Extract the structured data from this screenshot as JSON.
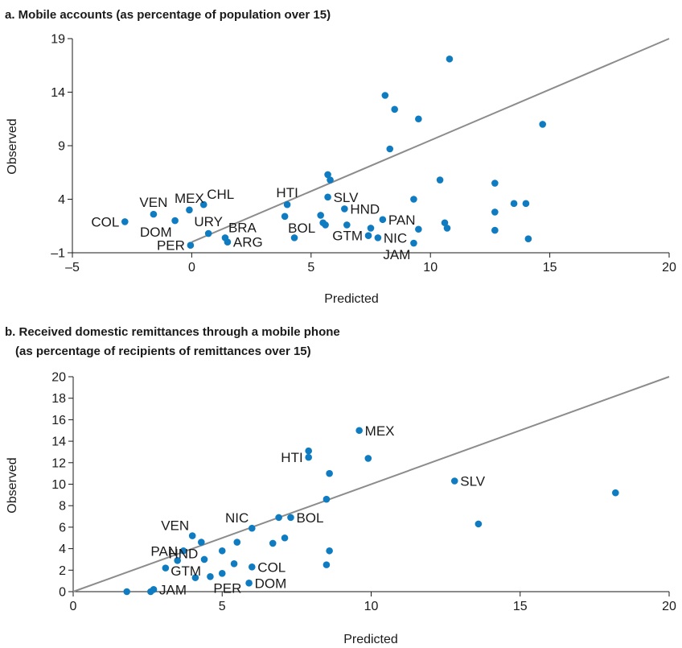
{
  "chart_data": [
    {
      "type": "scatter",
      "title": "a. Mobile accounts (as percentage of population over 15)",
      "subtitle": "",
      "xlabel": "Predicted",
      "ylabel": "Observed",
      "xlim": [
        -5,
        20
      ],
      "ylim": [
        -1,
        19
      ],
      "xticks": [
        "–5",
        "0",
        "5",
        "10",
        "15",
        "20"
      ],
      "xtick_values": [
        -5,
        0,
        5,
        10,
        15,
        20
      ],
      "yticks": [
        "–1",
        "4",
        "9",
        "14",
        "19"
      ],
      "ytick_values": [
        -1,
        4,
        9,
        14,
        19
      ],
      "fit_line": [
        [
          0,
          0
        ],
        [
          20,
          19
        ]
      ],
      "point_color": "#0f7cc1",
      "line_color": "#8c8c8c",
      "points": [
        {
          "x": -2.8,
          "y": 1.9
        },
        {
          "x": -1.6,
          "y": 2.6
        },
        {
          "x": -0.7,
          "y": 2.0
        },
        {
          "x": -0.1,
          "y": 3.0
        },
        {
          "x": 0.5,
          "y": 3.5
        },
        {
          "x": 0.7,
          "y": 0.8
        },
        {
          "x": -0.05,
          "y": -0.3
        },
        {
          "x": 1.4,
          "y": 0.4
        },
        {
          "x": 1.5,
          "y": 0.0
        },
        {
          "x": 4.0,
          "y": 3.5
        },
        {
          "x": 3.9,
          "y": 2.4
        },
        {
          "x": 4.3,
          "y": 0.4
        },
        {
          "x": 5.4,
          "y": 2.5
        },
        {
          "x": 5.5,
          "y": 1.8
        },
        {
          "x": 5.6,
          "y": 1.6
        },
        {
          "x": 5.7,
          "y": 4.2
        },
        {
          "x": 5.7,
          "y": 6.3
        },
        {
          "x": 5.8,
          "y": 5.8
        },
        {
          "x": 6.4,
          "y": 3.1
        },
        {
          "x": 6.5,
          "y": 1.6
        },
        {
          "x": 7.5,
          "y": 1.3
        },
        {
          "x": 7.4,
          "y": 0.6
        },
        {
          "x": 7.8,
          "y": 0.4
        },
        {
          "x": 8.0,
          "y": 2.1
        },
        {
          "x": 8.1,
          "y": 13.7
        },
        {
          "x": 8.3,
          "y": 8.7
        },
        {
          "x": 8.5,
          "y": 12.4
        },
        {
          "x": 9.3,
          "y": 4.0
        },
        {
          "x": 9.3,
          "y": -0.1
        },
        {
          "x": 9.5,
          "y": 11.5
        },
        {
          "x": 9.5,
          "y": 1.2
        },
        {
          "x": 10.4,
          "y": 5.8
        },
        {
          "x": 10.6,
          "y": 1.8
        },
        {
          "x": 10.7,
          "y": 1.3
        },
        {
          "x": 10.8,
          "y": 17.1
        },
        {
          "x": 12.7,
          "y": 5.5
        },
        {
          "x": 12.7,
          "y": 2.8
        },
        {
          "x": 12.7,
          "y": 1.1
        },
        {
          "x": 13.5,
          "y": 3.6
        },
        {
          "x": 14.0,
          "y": 3.6
        },
        {
          "x": 14.1,
          "y": 0.3
        },
        {
          "x": 14.7,
          "y": 11.0
        }
      ],
      "labels": [
        {
          "text": "COL",
          "x": -2.8,
          "y": 1.9,
          "pos": "left"
        },
        {
          "text": "VEN",
          "x": -1.6,
          "y": 2.6,
          "pos": "above"
        },
        {
          "text": "DOM",
          "x": -0.7,
          "y": 2.0,
          "pos": "below-left"
        },
        {
          "text": "MEX",
          "x": -0.1,
          "y": 3.0,
          "pos": "above"
        },
        {
          "text": "CHL",
          "x": 0.5,
          "y": 3.5,
          "pos": "above-right"
        },
        {
          "text": "URY",
          "x": 0.7,
          "y": 0.8,
          "pos": "above"
        },
        {
          "text": "PER",
          "x": -0.05,
          "y": -0.3,
          "pos": "left"
        },
        {
          "text": "BRA",
          "x": 1.4,
          "y": 0.4,
          "pos": "above-right"
        },
        {
          "text": "ARG",
          "x": 1.5,
          "y": 0.0,
          "pos": "right"
        },
        {
          "text": "HTI",
          "x": 4.0,
          "y": 3.5,
          "pos": "above"
        },
        {
          "text": "BOL",
          "x": 3.9,
          "y": 2.4,
          "pos": "below-right"
        },
        {
          "text": "SLV",
          "x": 5.7,
          "y": 4.2,
          "pos": "right"
        },
        {
          "text": "HND",
          "x": 6.4,
          "y": 3.1,
          "pos": "right"
        },
        {
          "text": "PAN",
          "x": 8.0,
          "y": 2.1,
          "pos": "right"
        },
        {
          "text": "GTM",
          "x": 7.4,
          "y": 0.6,
          "pos": "left"
        },
        {
          "text": "NIC",
          "x": 7.8,
          "y": 0.4,
          "pos": "right"
        },
        {
          "text": "JAM",
          "x": 9.3,
          "y": -0.1,
          "pos": "below-left"
        }
      ]
    },
    {
      "type": "scatter",
      "title": "b. Received domestic remittances through a mobile phone",
      "subtitle": "(as percentage of recipients of remittances over 15)",
      "xlabel": "Predicted",
      "ylabel": "Observed",
      "xlim": [
        0,
        20
      ],
      "ylim": [
        0,
        20
      ],
      "xticks": [
        "0",
        "5",
        "10",
        "15",
        "20"
      ],
      "xtick_values": [
        0,
        5,
        10,
        15,
        20
      ],
      "yticks": [
        "0",
        "2",
        "4",
        "6",
        "8",
        "10",
        "12",
        "14",
        "16",
        "18",
        "20"
      ],
      "ytick_values": [
        0,
        2,
        4,
        6,
        8,
        10,
        12,
        14,
        16,
        18,
        20
      ],
      "fit_line": [
        [
          0,
          0
        ],
        [
          20,
          20
        ]
      ],
      "point_color": "#0f7cc1",
      "line_color": "#8c8c8c",
      "points": [
        {
          "x": 1.8,
          "y": 0.0
        },
        {
          "x": 2.6,
          "y": 0.0
        },
        {
          "x": 2.7,
          "y": 0.2
        },
        {
          "x": 3.1,
          "y": 2.2
        },
        {
          "x": 3.5,
          "y": 2.9
        },
        {
          "x": 3.7,
          "y": 3.8
        },
        {
          "x": 4.0,
          "y": 5.2
        },
        {
          "x": 4.1,
          "y": 1.3
        },
        {
          "x": 4.3,
          "y": 4.6
        },
        {
          "x": 4.4,
          "y": 3.0
        },
        {
          "x": 4.6,
          "y": 1.4
        },
        {
          "x": 5.0,
          "y": 3.8
        },
        {
          "x": 5.0,
          "y": 1.7
        },
        {
          "x": 5.4,
          "y": 2.6
        },
        {
          "x": 5.5,
          "y": 4.6
        },
        {
          "x": 5.9,
          "y": 0.8
        },
        {
          "x": 6.0,
          "y": 5.9
        },
        {
          "x": 6.0,
          "y": 2.3
        },
        {
          "x": 6.7,
          "y": 4.5
        },
        {
          "x": 6.9,
          "y": 6.9
        },
        {
          "x": 7.1,
          "y": 5.0
        },
        {
          "x": 7.3,
          "y": 6.9
        },
        {
          "x": 7.9,
          "y": 12.5
        },
        {
          "x": 7.9,
          "y": 13.1
        },
        {
          "x": 8.5,
          "y": 8.6
        },
        {
          "x": 8.5,
          "y": 2.5
        },
        {
          "x": 8.6,
          "y": 11.0
        },
        {
          "x": 8.6,
          "y": 3.8
        },
        {
          "x": 9.6,
          "y": 15.0
        },
        {
          "x": 9.9,
          "y": 12.4
        },
        {
          "x": 12.8,
          "y": 10.3
        },
        {
          "x": 13.6,
          "y": 6.3
        },
        {
          "x": 18.2,
          "y": 9.2
        }
      ],
      "labels": [
        {
          "text": "MEX",
          "x": 9.6,
          "y": 15.0,
          "pos": "right"
        },
        {
          "text": "HTI",
          "x": 7.9,
          "y": 12.5,
          "pos": "left"
        },
        {
          "text": "SLV",
          "x": 12.8,
          "y": 10.3,
          "pos": "right"
        },
        {
          "text": "NIC",
          "x": 6.0,
          "y": 5.9,
          "pos": "above-left"
        },
        {
          "text": "BOL",
          "x": 7.3,
          "y": 6.9,
          "pos": "right"
        },
        {
          "text": "VEN",
          "x": 4.0,
          "y": 5.2,
          "pos": "above-left"
        },
        {
          "text": "PAN",
          "x": 3.7,
          "y": 3.8,
          "pos": "left"
        },
        {
          "text": "HND",
          "x": 4.3,
          "y": 4.6,
          "pos": "below-left"
        },
        {
          "text": "GTM",
          "x": 4.4,
          "y": 3.0,
          "pos": "below-left"
        },
        {
          "text": "COL",
          "x": 6.0,
          "y": 2.3,
          "pos": "right"
        },
        {
          "text": "JAM",
          "x": 2.7,
          "y": 0.2,
          "pos": "right"
        },
        {
          "text": "PER",
          "x": 4.6,
          "y": 1.4,
          "pos": "below-right"
        },
        {
          "text": "DOM",
          "x": 5.9,
          "y": 0.8,
          "pos": "right"
        }
      ]
    }
  ]
}
